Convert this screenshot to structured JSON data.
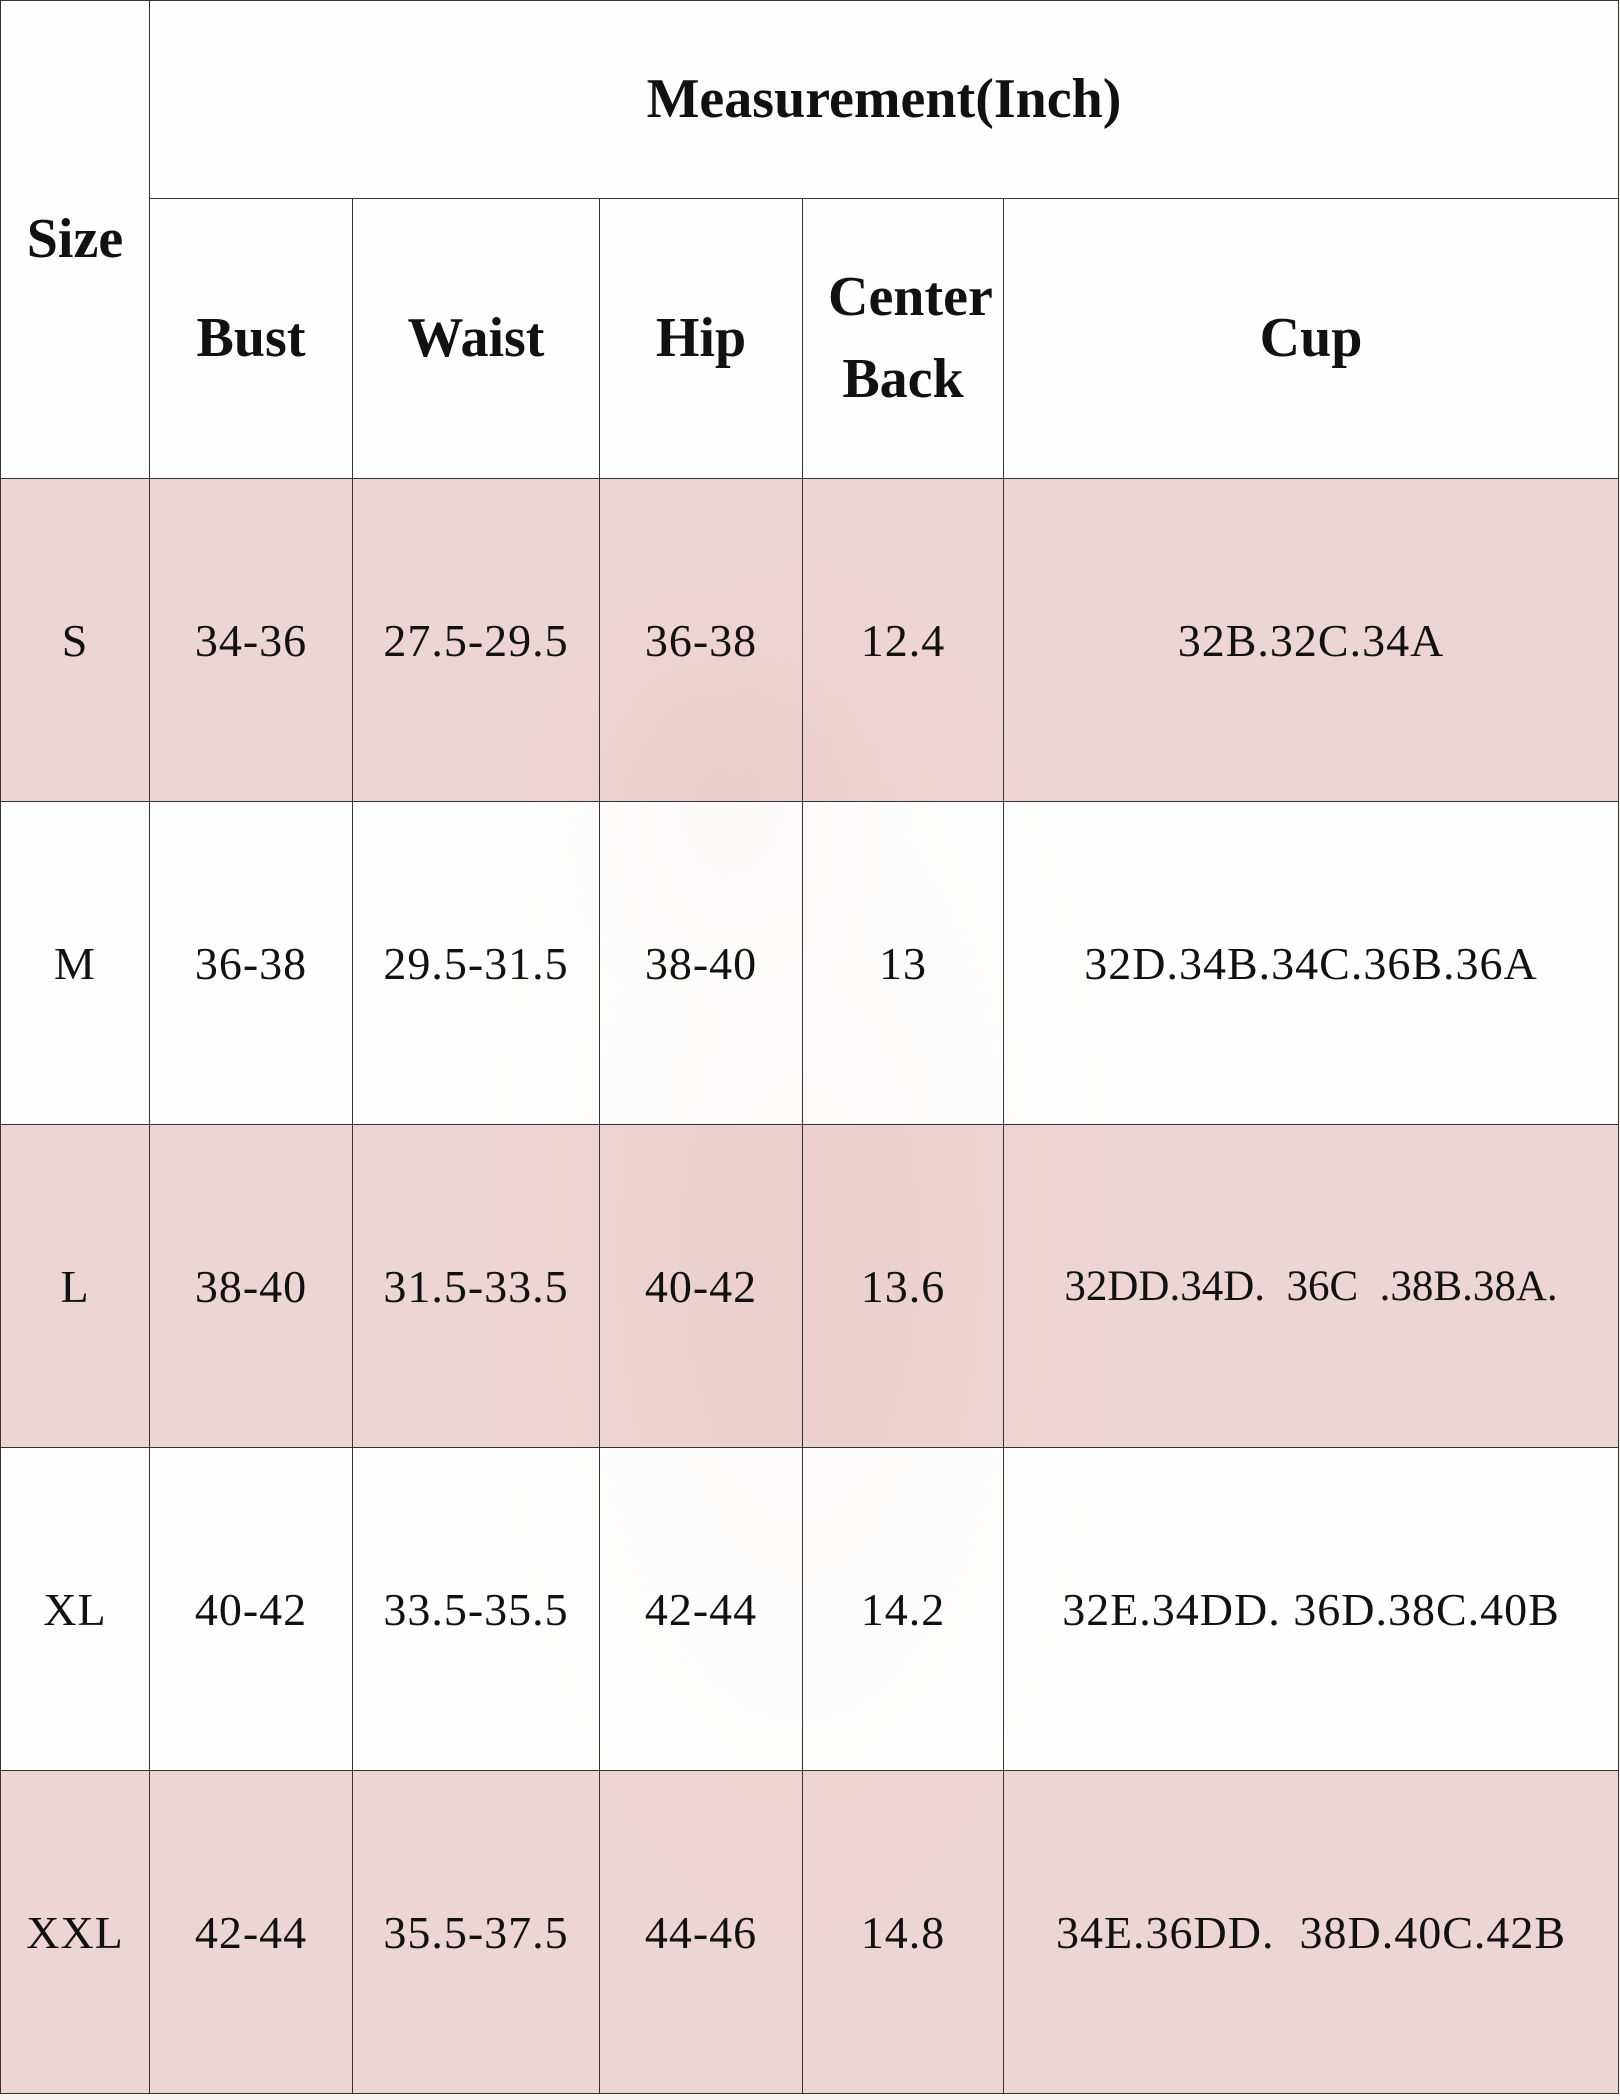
{
  "table": {
    "size_header": "Size",
    "measurement_header": "Measurement(Inch)",
    "columns": [
      "Bust",
      "Waist",
      "Hip",
      "Center Back",
      "Cup"
    ],
    "rows": [
      {
        "size": "S",
        "bust": "34-36",
        "waist": "27.5-29.5",
        "hip": "36-38",
        "center_back": "12.4",
        "cup": "32B.32C.34A"
      },
      {
        "size": "M",
        "bust": "36-38",
        "waist": "29.5-31.5",
        "hip": "38-40",
        "center_back": "13",
        "cup": "32D.34B.34C.36B.36A"
      },
      {
        "size": "L",
        "bust": "38-40",
        "waist": "31.5-33.5",
        "hip": "40-42",
        "center_back": "13.6",
        "cup": "32DD.34D.  36C  .38B.38A."
      },
      {
        "size": "XL",
        "bust": "40-42",
        "waist": "33.5-35.5",
        "hip": "42-44",
        "center_back": "14.2",
        "cup": "32E.34DD. 36D.38C.40B"
      },
      {
        "size": "XXL",
        "bust": "42-44",
        "waist": "35.5-37.5",
        "hip": "44-46",
        "center_back": "14.8",
        "cup": "34E.36DD.  38D.40C.42B"
      }
    ]
  },
  "colors": {
    "row_pink": "#f0d8d8",
    "row_white": "#ffffff",
    "border": "#333333"
  }
}
